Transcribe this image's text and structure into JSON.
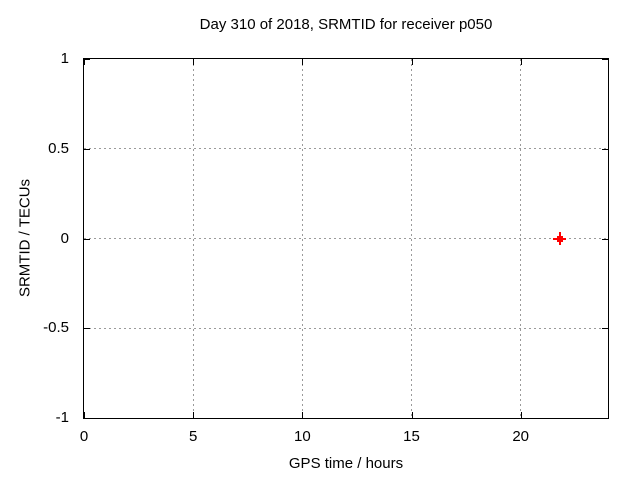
{
  "chart": {
    "title": "Day 310 of 2018, SRMTID for receiver p050",
    "xlabel": "GPS time / hours",
    "ylabel": "SRMTID / TECUs"
  },
  "chart_data": {
    "type": "scatter",
    "title": "Day 310 of 2018, SRMTID for receiver p050",
    "xlabel": "GPS time / hours",
    "ylabel": "SRMTID / TECUs",
    "xlim": [
      0,
      24
    ],
    "ylim": [
      -1,
      1
    ],
    "xticks": {
      "values": [
        0,
        5,
        10,
        15,
        20
      ],
      "labels": [
        "0",
        "5",
        "10",
        "15",
        "20"
      ]
    },
    "yticks": {
      "values": [
        -1,
        -0.5,
        0,
        0.5,
        1
      ],
      "labels": [
        "-1",
        "-0.5",
        "0",
        "0.5",
        "1"
      ]
    },
    "grid": true,
    "legend_position": "none",
    "series": [
      {
        "name": "SRMTID",
        "marker": "bold-plus",
        "color": "#ff0000",
        "points": [
          {
            "x": 21.8,
            "y": 0.0
          }
        ]
      }
    ]
  },
  "colors": {
    "background": "#ffffff",
    "axis": "#000000",
    "grid": "#9a9a9a",
    "text": "#000000",
    "marker": "#ff0000"
  }
}
